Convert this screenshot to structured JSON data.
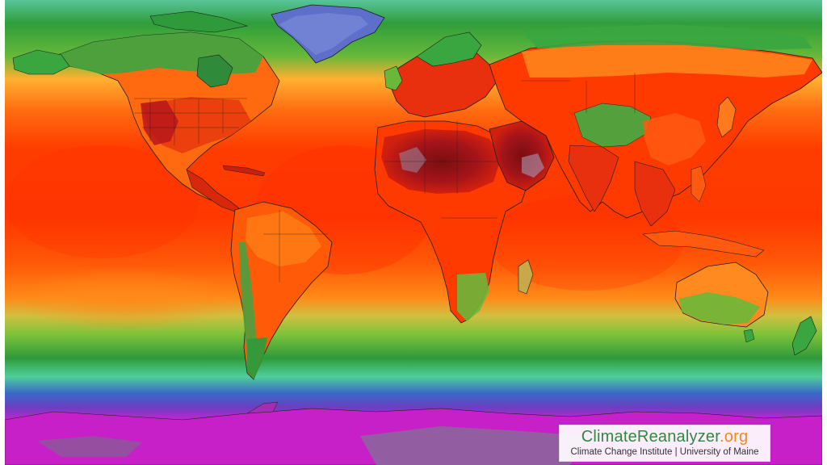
{
  "map": {
    "projection": "equirectangular",
    "variable": "temperature",
    "colors": {
      "extreme_hot": "#8a1010",
      "very_hot": "#c81e0e",
      "hot": "#ff3a00",
      "warm": "#ff7a10",
      "mild": "#ffa528",
      "cool": "#7ac23c",
      "cold": "#2a9a3c",
      "very_cold": "#3a62c6",
      "frigid": "#d11fd1",
      "polar": "#7a4a8a"
    }
  },
  "credit": {
    "brand_main": "ClimateReanalyzer",
    "brand_tld": ".org",
    "subtitle": "Climate Change Institute | University of Maine"
  }
}
